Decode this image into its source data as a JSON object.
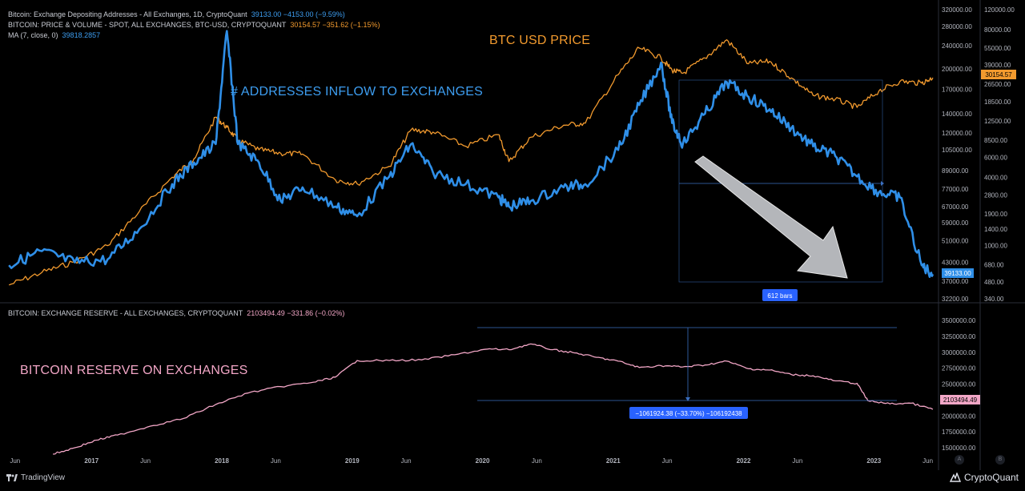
{
  "legend": {
    "row1": {
      "text": "Bitcoin: Exchange Depositing Addresses - All Exchanges, 1D, CryptoQuant",
      "value": "39133.00 −4153.00 (−9.59%)"
    },
    "row2": {
      "text": "BITCOIN: PRICE & VOLUME - SPOT, ALL EXCHANGES, BTC-USD, CRYPTOQUANT",
      "value": "30154.57 −351.62 (−1.15%)"
    },
    "row3": {
      "text": "MA (7, close, 0)",
      "value": "39818.2857"
    },
    "row4": {
      "text": "BITCOIN: EXCHANGE RESERVE - ALL EXCHANGES, CRYPTOQUANT",
      "value": "2103494.49 −331.86 (−0.02%)"
    }
  },
  "annotations": {
    "btc_price": "BTC USD PRICE",
    "addresses": "# ADDRESSES INFLOW TO EXCHANGES",
    "reserve": "BITCOIN RESERVE ON EXCHANGES"
  },
  "measure": {
    "bars_label": "612 bars",
    "reserve_change": "−1061924.38 (−33.70%) −106192438"
  },
  "branding": {
    "tradingview": "TradingView",
    "cryptoquant": "CryptoQuant",
    "scale_a": "A",
    "scale_b": "B"
  },
  "colors": {
    "addresses": "#2f8fe8",
    "price": "#f29a2e",
    "reserve": "#f2a6c6",
    "grid": "#1a1d24",
    "axis_text": "#b2b5be",
    "measure": "#3a6fc0",
    "arrow_fill": "#b4b6ba"
  },
  "chart_data": [
    {
      "type": "line",
      "panel": "top",
      "x_ticks": [
        "Jun",
        "2017",
        "Jun",
        "2018",
        "Jun",
        "2019",
        "Jun",
        "2020",
        "Jun",
        "2021",
        "Jun",
        "2022",
        "Jun",
        "2023",
        "Jun"
      ],
      "axis_left": {
        "label": "Exchange Depositing Addresses",
        "ticks": [
          320000,
          280000,
          240000,
          200000,
          170000,
          140000,
          120000,
          105000,
          89000,
          77000,
          67000,
          59000,
          51000,
          43000,
          37000,
          32200
        ],
        "current_label": "39133.00"
      },
      "axis_right": {
        "label": "BTC USD Price",
        "ticks": [
          120000,
          80000,
          55000,
          39000,
          26500,
          18500,
          12500,
          8500,
          6000,
          4000,
          2800,
          1900,
          1400,
          1000,
          680,
          480,
          340
        ],
        "current_label": "30154.57"
      },
      "series": [
        {
          "name": "Bitcoin: Exchange Depositing Addresses",
          "axis": "left",
          "x": [
            "2016-05",
            "2016-08",
            "2016-11",
            "2017-02",
            "2017-05",
            "2017-08",
            "2017-10",
            "2017-12",
            "2018-01",
            "2018-02",
            "2018-04",
            "2018-06",
            "2018-08",
            "2018-11",
            "2019-01",
            "2019-04",
            "2019-06",
            "2019-08",
            "2019-11",
            "2020-02",
            "2020-03",
            "2020-05",
            "2020-08",
            "2020-10",
            "2021-01",
            "2021-03",
            "2021-05",
            "2021-06",
            "2021-07",
            "2021-09",
            "2021-11",
            "2022-01",
            "2022-03",
            "2022-05",
            "2022-07",
            "2022-09",
            "2022-11",
            "2023-01",
            "2023-03",
            "2023-05",
            "2023-06"
          ],
          "values": [
            42000,
            47000,
            43000,
            44000,
            56000,
            80000,
            95000,
            110000,
            270000,
            110000,
            95000,
            70000,
            78000,
            67000,
            62000,
            85000,
            110000,
            88000,
            80000,
            72000,
            67000,
            70000,
            78000,
            80000,
            105000,
            150000,
            210000,
            130000,
            110000,
            140000,
            180000,
            160000,
            145000,
            125000,
            108000,
            100000,
            85000,
            75000,
            72000,
            42000,
            39133
          ]
        },
        {
          "name": "BTC-USD Price",
          "axis": "right",
          "x": [
            "2016-05",
            "2016-08",
            "2016-11",
            "2017-02",
            "2017-05",
            "2017-08",
            "2017-10",
            "2017-12",
            "2018-01",
            "2018-02",
            "2018-04",
            "2018-06",
            "2018-08",
            "2018-11",
            "2019-01",
            "2019-04",
            "2019-06",
            "2019-08",
            "2019-11",
            "2020-02",
            "2020-03",
            "2020-05",
            "2020-08",
            "2020-10",
            "2021-01",
            "2021-03",
            "2021-05",
            "2021-06",
            "2021-07",
            "2021-09",
            "2021-11",
            "2022-01",
            "2022-03",
            "2022-05",
            "2022-07",
            "2022-09",
            "2022-11",
            "2023-01",
            "2023-03",
            "2023-05",
            "2023-06"
          ],
          "values": [
            450,
            580,
            720,
            1000,
            2000,
            4000,
            5800,
            13500,
            11000,
            8500,
            7000,
            6500,
            6400,
            3800,
            3500,
            5000,
            10500,
            10000,
            7500,
            9500,
            5500,
            9000,
            11500,
            12000,
            32000,
            55000,
            45000,
            35000,
            33000,
            45000,
            65000,
            40000,
            42000,
            30000,
            21000,
            19500,
            16500,
            23000,
            28000,
            27000,
            30154.57
          ]
        }
      ]
    },
    {
      "type": "line",
      "panel": "bottom",
      "x_ticks": [
        "Jun",
        "2017",
        "Jun",
        "2018",
        "Jun",
        "2019",
        "Jun",
        "2020",
        "Jun",
        "2021",
        "Jun",
        "2022",
        "Jun",
        "2023",
        "Jun"
      ],
      "y_ticks": [
        3500000,
        3250000,
        3000000,
        2750000,
        2500000,
        2250000,
        2000000,
        1750000,
        1500000
      ],
      "ylim": [
        1400000,
        3500000
      ],
      "current_label": "2103494.49",
      "series": [
        {
          "name": "BITCOIN: EXCHANGE RESERVE - ALL EXCHANGES",
          "x": [
            "2016-09",
            "2016-11",
            "2017-01",
            "2017-03",
            "2017-06",
            "2017-09",
            "2017-12",
            "2018-03",
            "2018-06",
            "2018-09",
            "2018-11",
            "2019-01",
            "2019-04",
            "2019-07",
            "2019-10",
            "2020-01",
            "2020-03",
            "2020-05",
            "2020-07",
            "2020-09",
            "2020-11",
            "2021-01",
            "2021-03",
            "2021-05",
            "2021-07",
            "2021-09",
            "2021-11",
            "2022-01",
            "2022-03",
            "2022-05",
            "2022-07",
            "2022-09",
            "2022-11",
            "2022-12",
            "2023-02",
            "2023-04",
            "2023-06"
          ],
          "values": [
            1400000,
            1500000,
            1620000,
            1700000,
            1840000,
            1960000,
            2180000,
            2360000,
            2460000,
            2530000,
            2610000,
            2870000,
            2870000,
            2880000,
            2960000,
            3050000,
            3040000,
            3130000,
            3040000,
            2990000,
            2920000,
            2860000,
            2760000,
            2790000,
            2770000,
            2800000,
            2860000,
            2740000,
            2720000,
            2650000,
            2630000,
            2550000,
            2510000,
            2240000,
            2190000,
            2200000,
            2103494.49
          ]
        }
      ]
    }
  ]
}
